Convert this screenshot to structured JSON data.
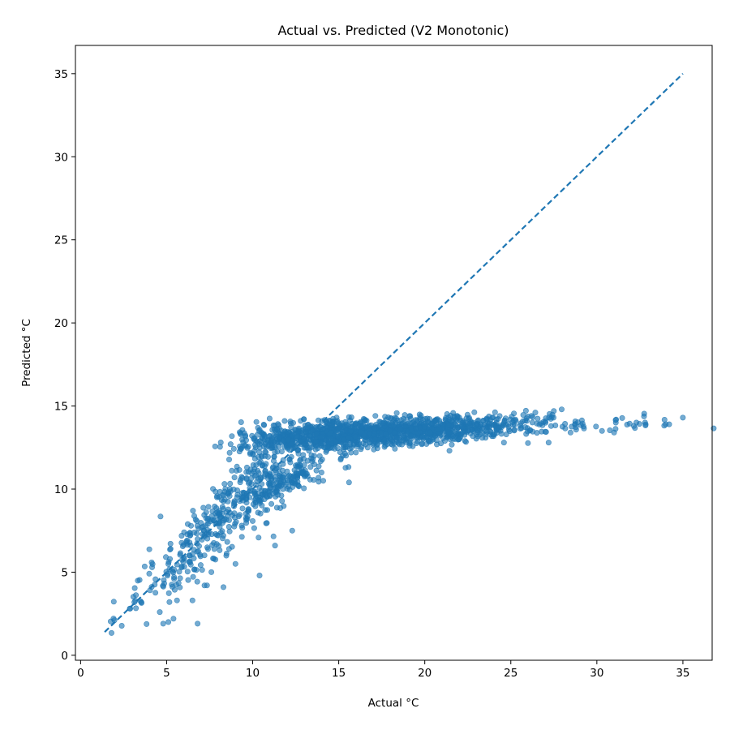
{
  "chart_data": {
    "type": "scatter",
    "title": "Actual vs. Predicted (V2 Monotonic)",
    "xlabel": "Actual °C",
    "ylabel": "Predicted °C",
    "xlim": [
      -0.3,
      36.7
    ],
    "ylim": [
      -0.3,
      36.7
    ],
    "xticks": [
      0,
      5,
      10,
      15,
      20,
      25,
      30,
      35
    ],
    "yticks": [
      0,
      5,
      10,
      15,
      20,
      25,
      30,
      35
    ],
    "grid": false,
    "legend": "none",
    "point_color": "#1f77b4",
    "line_color": "#1f77b4",
    "reference_line": {
      "style": "dashed",
      "x": [
        1.4,
        35.0
      ],
      "y": [
        1.4,
        35.0
      ]
    },
    "clusters": [
      {
        "x_center": 2.8,
        "x_spread": 1.2,
        "y_slope": 1.0,
        "y_intercept": 0.0,
        "y_noise": 0.8,
        "n": 20
      },
      {
        "x_center": 5.5,
        "x_spread": 1.2,
        "y_slope": 1.0,
        "y_intercept": -0.3,
        "y_noise": 1.0,
        "n": 45
      },
      {
        "x_center": 8.0,
        "x_spread": 1.5,
        "y_slope": 1.0,
        "y_intercept": 0.2,
        "y_noise": 1.0,
        "n": 180
      },
      {
        "x_center": 9.0,
        "x_spread": 1.6,
        "y_slope": 0.55,
        "y_intercept": 3.5,
        "y_noise": 1.4,
        "n": 80
      },
      {
        "x_center": 11.5,
        "x_spread": 1.5,
        "y_slope": 0.4,
        "y_intercept": 5.8,
        "y_noise": 0.6,
        "n": 200
      },
      {
        "x_center": 12.0,
        "x_spread": 1.8,
        "y_slope": 0.15,
        "y_intercept": 11.2,
        "y_noise": 0.5,
        "n": 250
      },
      {
        "x_center": 15.0,
        "x_spread": 1.8,
        "y_slope": 0.06,
        "y_intercept": 12.3,
        "y_noise": 0.4,
        "n": 400
      },
      {
        "x_center": 19.0,
        "x_spread": 2.2,
        "y_slope": 0.03,
        "y_intercept": 12.9,
        "y_noise": 0.4,
        "n": 550
      },
      {
        "x_center": 23.5,
        "x_spread": 2.0,
        "y_slope": 0.03,
        "y_intercept": 13.1,
        "y_noise": 0.35,
        "n": 180
      },
      {
        "x_center": 28.0,
        "x_spread": 1.8,
        "y_slope": 0.0,
        "y_intercept": 14.0,
        "y_noise": 0.35,
        "n": 45
      },
      {
        "x_center": 32.5,
        "x_spread": 1.6,
        "y_slope": 0.0,
        "y_intercept": 14.0,
        "y_noise": 0.3,
        "n": 10
      }
    ],
    "outliers": [
      [
        6.8,
        1.9
      ],
      [
        5.1,
        2.0
      ],
      [
        5.4,
        2.2
      ],
      [
        4.6,
        2.6
      ],
      [
        4.8,
        1.9
      ],
      [
        6.5,
        3.3
      ],
      [
        5.6,
        3.3
      ],
      [
        7.2,
        4.2
      ],
      [
        8.3,
        4.1
      ],
      [
        10.4,
        4.8
      ],
      [
        7.6,
        5.0
      ],
      [
        9.0,
        5.5
      ],
      [
        11.3,
        6.6
      ],
      [
        12.3,
        7.5
      ],
      [
        9.6,
        12.6
      ],
      [
        10.4,
        12.7
      ],
      [
        14.1,
        10.5
      ],
      [
        15.6,
        10.4
      ],
      [
        14.0,
        11.0
      ],
      [
        16.0,
        12.2
      ],
      [
        34.0,
        13.9
      ],
      [
        35.0,
        14.3
      ],
      [
        31.1,
        14.0
      ],
      [
        32.3,
        14.0
      ],
      [
        32.8,
        14.0
      ],
      [
        34.2,
        13.9
      ],
      [
        30.3,
        13.5
      ],
      [
        31.0,
        13.4
      ],
      [
        27.2,
        12.8
      ],
      [
        24.6,
        12.8
      ],
      [
        27.5,
        14.7
      ],
      [
        26.2,
        14.4
      ]
    ]
  }
}
